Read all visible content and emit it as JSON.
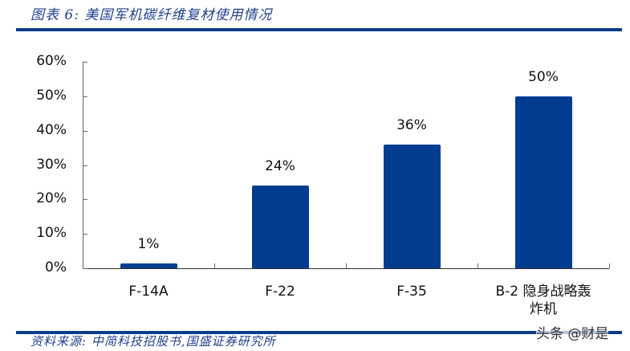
{
  "header": {
    "title": "图表 6:  美国军机碳纤维复材使用情况"
  },
  "footer": {
    "source": "资料来源:  中简科技招股书,国盛证券研究所",
    "watermark": "头条 @财是"
  },
  "colors": {
    "bar": "#003d91",
    "rule": "#0f3c8c",
    "text_accent": "#1f3f8f"
  },
  "chart_data": {
    "type": "bar",
    "title": "美国军机碳纤维复材使用情况",
    "categories": [
      "F-14A",
      "F-22",
      "F-35",
      "B-2 隐身战略轰炸机"
    ],
    "values": [
      0.01,
      0.24,
      0.36,
      0.5
    ],
    "value_labels": [
      "1%",
      "24%",
      "36%",
      "50%"
    ],
    "xlabel": "",
    "ylabel": "",
    "ylim": [
      0,
      0.6
    ],
    "yticks": [
      "0%",
      "10%",
      "20%",
      "30%",
      "40%",
      "50%",
      "60%"
    ],
    "grid": false,
    "legend": null
  },
  "xlabels": [
    "F-14A",
    "F-22",
    "F-35",
    "B-2 隐身战略轰",
    "炸机"
  ]
}
